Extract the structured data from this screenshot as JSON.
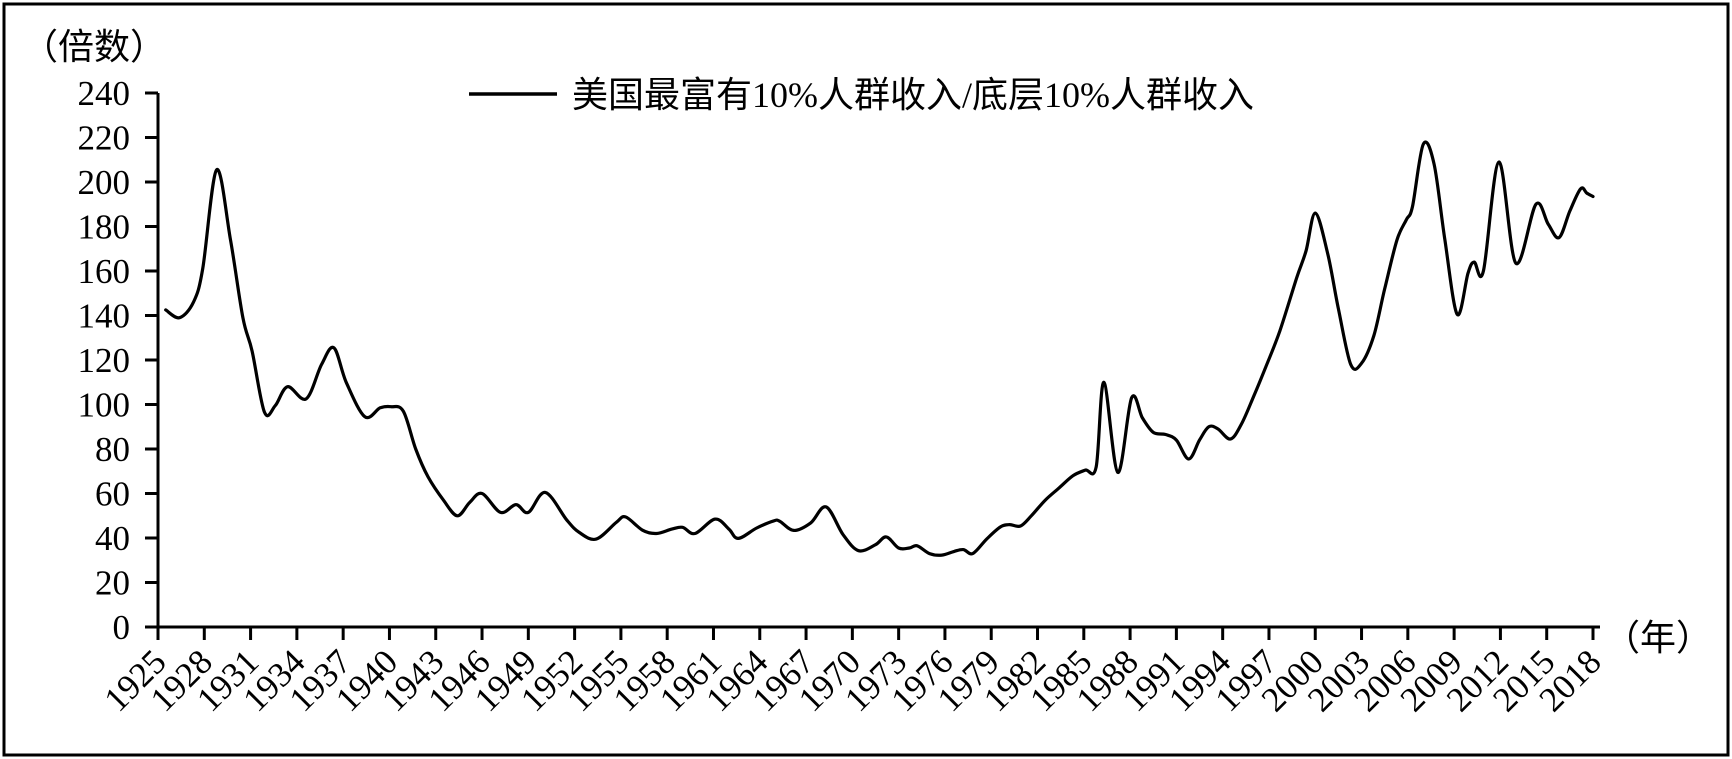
{
  "figure": {
    "background_color": "#ffffff",
    "border_color": "#000000",
    "line_color": "#000000"
  },
  "chart_data": {
    "type": "line",
    "title": "",
    "legend": "美国最富有10%人群收入/底层10%人群收入",
    "legend_position": "top-center",
    "y_unit": "（倍数）",
    "x_unit": "（年）",
    "grid": false,
    "xlim": [
      1925,
      2018
    ],
    "ylim": [
      0,
      240
    ],
    "y_ticks": [
      0,
      20,
      40,
      60,
      80,
      100,
      120,
      140,
      160,
      180,
      200,
      220,
      240
    ],
    "x_ticks": [
      1925,
      1928,
      1931,
      1934,
      1937,
      1940,
      1943,
      1946,
      1949,
      1952,
      1955,
      1958,
      1961,
      1964,
      1967,
      1970,
      1973,
      1976,
      1979,
      1982,
      1985,
      1988,
      1991,
      1994,
      1997,
      2000,
      2003,
      2006,
      2009,
      2012,
      2015,
      2018
    ],
    "series": [
      {
        "name": "美国最富有10%人群收入/底层10%人群收入",
        "color": "#000000",
        "points": [
          [
            1925.5,
            142.5
          ],
          [
            1926.4,
            139
          ],
          [
            1927.3,
            146
          ],
          [
            1927.9,
            161
          ],
          [
            1928.8,
            205.5
          ],
          [
            1929.7,
            174
          ],
          [
            1930.5,
            139
          ],
          [
            1931.1,
            124
          ],
          [
            1931.9,
            96.5
          ],
          [
            1932.6,
            99.5
          ],
          [
            1933.4,
            108
          ],
          [
            1934.6,
            102.5
          ],
          [
            1935.6,
            118
          ],
          [
            1936.4,
            125.5
          ],
          [
            1937.2,
            110
          ],
          [
            1938.4,
            94.5
          ],
          [
            1939.4,
            98.5
          ],
          [
            1940.1,
            99
          ],
          [
            1940.9,
            97
          ],
          [
            1941.7,
            80
          ],
          [
            1942.5,
            67.5
          ],
          [
            1943.5,
            57
          ],
          [
            1944.4,
            50
          ],
          [
            1945.2,
            56
          ],
          [
            1946.0,
            60
          ],
          [
            1947.2,
            51.5
          ],
          [
            1948.2,
            55
          ],
          [
            1949.0,
            51.5
          ],
          [
            1950.1,
            60.5
          ],
          [
            1951.5,
            48
          ],
          [
            1952.3,
            42.5
          ],
          [
            1953.4,
            39.5
          ],
          [
            1954.7,
            47
          ],
          [
            1955.3,
            49.5
          ],
          [
            1956.4,
            43.5
          ],
          [
            1957.3,
            42
          ],
          [
            1958.3,
            44
          ],
          [
            1959.0,
            44.8
          ],
          [
            1959.8,
            42
          ],
          [
            1961.1,
            48.5
          ],
          [
            1962.0,
            44
          ],
          [
            1962.6,
            39.8
          ],
          [
            1963.8,
            44.5
          ],
          [
            1964.9,
            47.7
          ],
          [
            1965.3,
            47.5
          ],
          [
            1966.2,
            43.4
          ],
          [
            1967.3,
            46.8
          ],
          [
            1968.3,
            54
          ],
          [
            1969.4,
            41.5
          ],
          [
            1970.4,
            34.3
          ],
          [
            1971.5,
            37
          ],
          [
            1972.2,
            40.5
          ],
          [
            1973.0,
            35.5
          ],
          [
            1973.7,
            35.5
          ],
          [
            1974.2,
            36.5
          ],
          [
            1975.0,
            33
          ],
          [
            1975.8,
            32.3
          ],
          [
            1976.6,
            34
          ],
          [
            1977.2,
            34.8
          ],
          [
            1977.8,
            33
          ],
          [
            1978.7,
            39.5
          ],
          [
            1979.6,
            45
          ],
          [
            1980.2,
            46
          ],
          [
            1980.9,
            45.4
          ],
          [
            1981.6,
            50
          ],
          [
            1982.5,
            57
          ],
          [
            1983.4,
            62.5
          ],
          [
            1984.3,
            68
          ],
          [
            1985.1,
            70.5
          ],
          [
            1985.8,
            72
          ],
          [
            1986.3,
            110
          ],
          [
            1987.2,
            69.5
          ],
          [
            1988.1,
            103
          ],
          [
            1988.8,
            94
          ],
          [
            1989.5,
            87.5
          ],
          [
            1990.3,
            86.5
          ],
          [
            1991.0,
            84
          ],
          [
            1991.8,
            75.5
          ],
          [
            1992.5,
            84
          ],
          [
            1993.1,
            90
          ],
          [
            1993.7,
            89
          ],
          [
            1994.5,
            84.5
          ],
          [
            1995.2,
            91
          ],
          [
            1996.0,
            103.5
          ],
          [
            1996.8,
            117
          ],
          [
            1997.7,
            133
          ],
          [
            1998.8,
            157
          ],
          [
            1999.4,
            169
          ],
          [
            2000.0,
            186
          ],
          [
            2000.8,
            168
          ],
          [
            2001.5,
            143
          ],
          [
            2002.3,
            118
          ],
          [
            2003.0,
            118.5
          ],
          [
            2003.8,
            131
          ],
          [
            2004.5,
            152
          ],
          [
            2005.3,
            174
          ],
          [
            2005.9,
            183
          ],
          [
            2006.3,
            189
          ],
          [
            2007.0,
            217
          ],
          [
            2007.7,
            208
          ],
          [
            2008.4,
            174
          ],
          [
            2009.2,
            140.5
          ],
          [
            2009.9,
            159
          ],
          [
            2010.3,
            164
          ],
          [
            2010.9,
            160
          ],
          [
            2011.9,
            209
          ],
          [
            2013.0,
            163.5
          ],
          [
            2014.3,
            190
          ],
          [
            2015.1,
            181
          ],
          [
            2015.8,
            175
          ],
          [
            2016.5,
            187
          ],
          [
            2017.2,
            197
          ],
          [
            2017.6,
            195
          ],
          [
            2018.0,
            193.5
          ]
        ]
      }
    ]
  }
}
